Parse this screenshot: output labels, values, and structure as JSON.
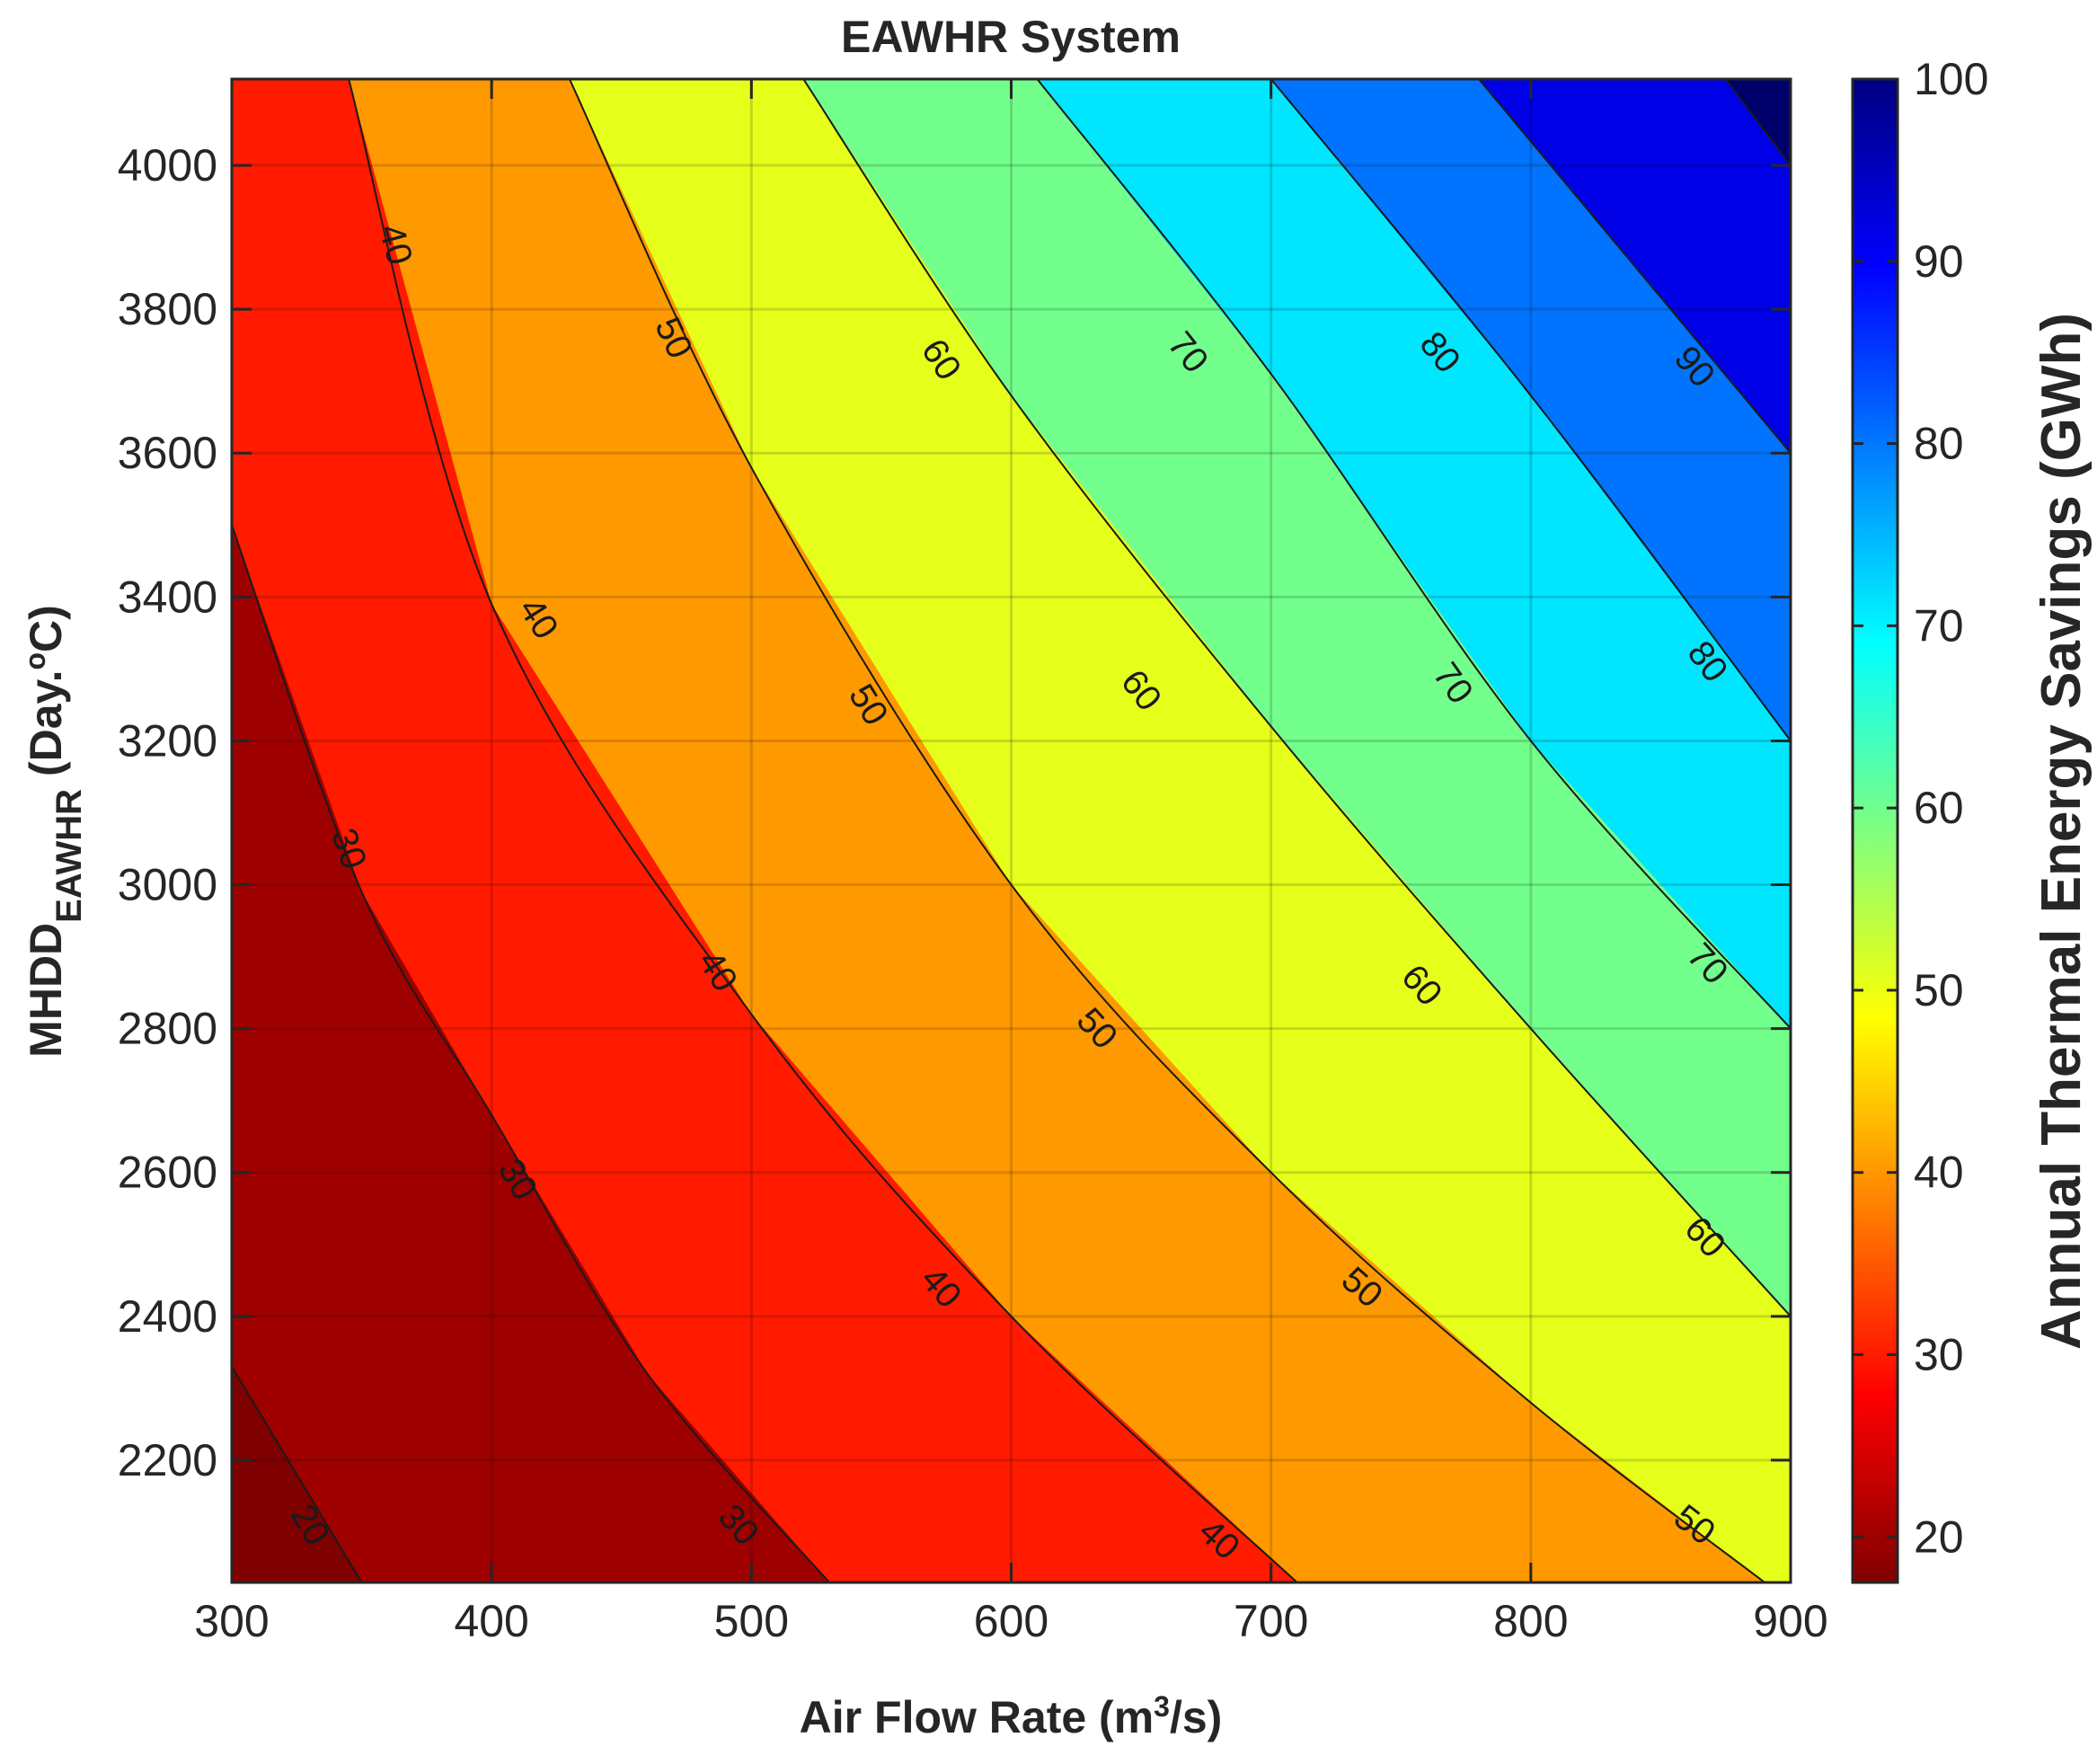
{
  "chart_data": {
    "type": "contour",
    "title": "EAWHR System",
    "xlabel": "Air Flow Rate (m",
    "xlabel_sup": "3",
    "xlabel_end": "/s)",
    "ylabel": "MHDD",
    "ylabel_sub": "EAWHR",
    "ylabel_mid": " (Day.",
    "ylabel_sup": "o",
    "ylabel_end": "C)",
    "colorbar_label": "Annual Thermal Energy Savings (GWh)",
    "xlim": [
      300,
      900
    ],
    "ylim": [
      2030,
      4120
    ],
    "clim": [
      17.5,
      100
    ],
    "xticks": [
      300,
      400,
      500,
      600,
      700,
      800,
      900
    ],
    "yticks": [
      2200,
      2400,
      2600,
      2800,
      3000,
      3200,
      3400,
      3600,
      3800,
      4000
    ],
    "cticks": [
      20,
      30,
      40,
      50,
      60,
      70,
      80,
      90,
      100
    ],
    "grid": true,
    "colormap": "jet",
    "levels": [
      {
        "min": 15,
        "max": 20,
        "color": "#7f0000"
      },
      {
        "min": 20,
        "max": 30,
        "color": "#9e0000"
      },
      {
        "min": 30,
        "max": 40,
        "color": "#ff1a00"
      },
      {
        "min": 40,
        "max": 50,
        "color": "#ff9900"
      },
      {
        "min": 50,
        "max": 60,
        "color": "#e6ff1a"
      },
      {
        "min": 60,
        "max": 70,
        "color": "#73ff8c"
      },
      {
        "min": 70,
        "max": 80,
        "color": "#00e6ff"
      },
      {
        "min": 80,
        "max": 90,
        "color": "#0073ff"
      },
      {
        "min": 90,
        "max": 100,
        "color": "#0000e6"
      },
      {
        "min": 100,
        "max": 110,
        "color": "#00006b"
      }
    ],
    "contours": [
      {
        "level": 20,
        "points": [
          [
            300,
            2330
          ],
          [
            350,
            2030
          ]
        ]
      },
      {
        "level": 30,
        "points": [
          [
            300,
            3500
          ],
          [
            350,
            2990
          ],
          [
            400,
            2680
          ],
          [
            460,
            2320
          ],
          [
            530,
            2030
          ]
        ]
      },
      {
        "level": 40,
        "points": [
          [
            345,
            4120
          ],
          [
            400,
            3390
          ],
          [
            500,
            2820
          ],
          [
            600,
            2400
          ],
          [
            710,
            2030
          ]
        ]
      },
      {
        "level": 50,
        "points": [
          [
            430,
            4120
          ],
          [
            500,
            3580
          ],
          [
            600,
            3000
          ],
          [
            700,
            2600
          ],
          [
            800,
            2280
          ],
          [
            890,
            2030
          ]
        ]
      },
      {
        "level": 60,
        "points": [
          [
            520,
            4120
          ],
          [
            600,
            3680
          ],
          [
            700,
            3220
          ],
          [
            800,
            2800
          ],
          [
            900,
            2400
          ]
        ]
      },
      {
        "level": 70,
        "points": [
          [
            610,
            4120
          ],
          [
            700,
            3710
          ],
          [
            800,
            3200
          ],
          [
            900,
            2800
          ]
        ]
      },
      {
        "level": 80,
        "points": [
          [
            700,
            4120
          ],
          [
            800,
            3680
          ],
          [
            900,
            3200
          ]
        ]
      },
      {
        "level": 90,
        "points": [
          [
            780,
            4120
          ],
          [
            900,
            3600
          ]
        ]
      },
      {
        "level": 100,
        "points": [
          [
            875,
            4120
          ],
          [
            900,
            4000
          ]
        ]
      }
    ],
    "contour_labels": [
      {
        "text": "20",
        "x": 330,
        "y": 2110
      },
      {
        "text": "30",
        "x": 345,
        "y": 3050
      },
      {
        "text": "30",
        "x": 410,
        "y": 2590
      },
      {
        "text": "30",
        "x": 495,
        "y": 2110
      },
      {
        "text": "40",
        "x": 363,
        "y": 3890
      },
      {
        "text": "40",
        "x": 418,
        "y": 3370
      },
      {
        "text": "40",
        "x": 487,
        "y": 2880
      },
      {
        "text": "40",
        "x": 573,
        "y": 2440
      },
      {
        "text": "40",
        "x": 680,
        "y": 2090
      },
      {
        "text": "50",
        "x": 470,
        "y": 3760
      },
      {
        "text": "50",
        "x": 545,
        "y": 3250
      },
      {
        "text": "50",
        "x": 633,
        "y": 2800
      },
      {
        "text": "50",
        "x": 735,
        "y": 2440
      },
      {
        "text": "50",
        "x": 863,
        "y": 2110
      },
      {
        "text": "60",
        "x": 573,
        "y": 3730
      },
      {
        "text": "60",
        "x": 650,
        "y": 3270
      },
      {
        "text": "60",
        "x": 758,
        "y": 2860
      },
      {
        "text": "60",
        "x": 867,
        "y": 2510
      },
      {
        "text": "70",
        "x": 668,
        "y": 3740
      },
      {
        "text": "70",
        "x": 770,
        "y": 3280
      },
      {
        "text": "70",
        "x": 868,
        "y": 2890
      },
      {
        "text": "80",
        "x": 765,
        "y": 3740
      },
      {
        "text": "80",
        "x": 868,
        "y": 3310
      },
      {
        "text": "90",
        "x": 863,
        "y": 3720
      }
    ]
  }
}
